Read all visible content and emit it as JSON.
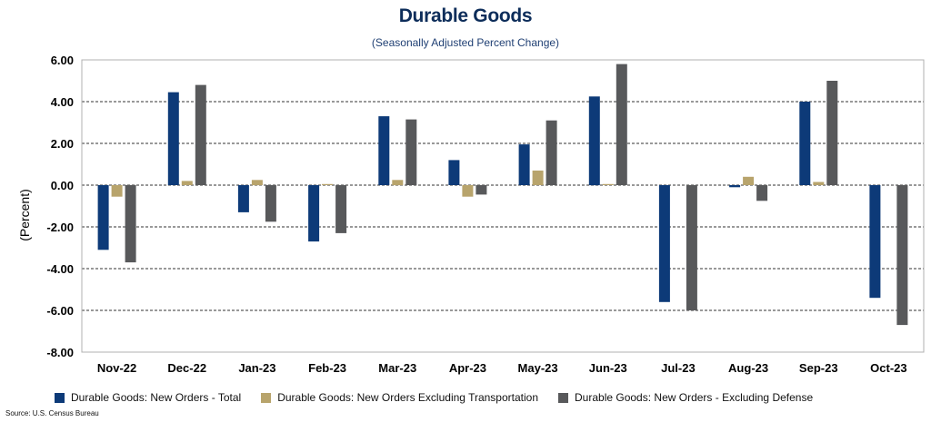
{
  "chart_data": {
    "type": "bar",
    "title": "Durable Goods",
    "subtitle": "(Seasonally Adjusted Percent Change)",
    "ylabel": "(Percent)",
    "xlabel": "",
    "ylim": [
      -8,
      6
    ],
    "yticks": [
      6,
      4,
      2,
      0,
      -2,
      -4,
      -6,
      -8
    ],
    "ytick_labels": [
      "6.00",
      "4.00",
      "2.00",
      "0.00",
      "-2.00",
      "-4.00",
      "-6.00",
      "-8.00"
    ],
    "grid": "horizontal dashed",
    "legend_position": "bottom",
    "categories": [
      "Nov-22",
      "Dec-22",
      "Jan-23",
      "Feb-23",
      "Mar-23",
      "Apr-23",
      "May-23",
      "Jun-23",
      "Jul-23",
      "Aug-23",
      "Sep-23",
      "Oct-23"
    ],
    "series": [
      {
        "name": "Durable Goods: New Orders - Total",
        "color": "#0d3a78",
        "values": [
          -3.1,
          4.45,
          -1.3,
          -2.7,
          3.3,
          1.2,
          1.95,
          4.25,
          -5.6,
          -0.1,
          4.0,
          -5.4
        ]
      },
      {
        "name": "Durable Goods: New Orders Excluding Transportation",
        "color": "#b8a46c",
        "values": [
          -0.55,
          0.2,
          0.25,
          0.05,
          0.25,
          -0.55,
          0.7,
          0.05,
          0.0,
          0.4,
          0.15,
          0.0
        ]
      },
      {
        "name": "Durable Goods: New Orders - Excluding Defense",
        "color": "#58595b",
        "values": [
          -3.7,
          4.8,
          -1.75,
          -2.3,
          3.15,
          -0.45,
          3.1,
          5.8,
          -6.0,
          -0.75,
          5.0,
          -6.7
        ]
      }
    ],
    "source": "Source: U.S. Census Bureau"
  }
}
